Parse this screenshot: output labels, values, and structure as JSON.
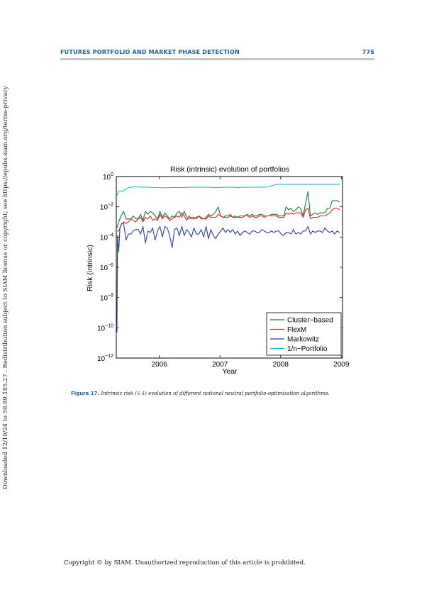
{
  "header": {
    "title": "FUTURES PORTFOLIO AND MARKET PHASE DETECTION",
    "page_number": "775"
  },
  "side_note": "Downloaded 12/10/24 to 50.89.185.27 . Redistribution subject to SIAM license or copyright; see https://epubs.siam.org/terms-privacy",
  "caption": {
    "label": "Figure 17.",
    "text_before": "Intrinsic risk (",
    "ref": "4.4",
    "text_after": ") evolution of different notional neutral portfolio-optimization algorithms."
  },
  "footer": "Copyright © by SIAM. Unauthorized reproduction of this article is prohibited.",
  "colors": {
    "header_blue": "#1f5c99",
    "cluster_based": "#1a7a3a",
    "flexm": "#e8262a",
    "markowitz": "#2b3f9a",
    "one_over_n": "#2bbdc0"
  },
  "chart_data": {
    "type": "line",
    "title": "Risk (intrinsic) evolution of portfolios",
    "xlabel": "Year",
    "ylabel": "Risk (intrinsic)",
    "yscale": "log",
    "xlim": [
      2005.29,
      2009.02
    ],
    "ylim_exponent": [
      -12,
      0
    ],
    "x_ticks": [
      {
        "value": 2006,
        "label": "2006"
      },
      {
        "value": 2007,
        "label": "2007"
      },
      {
        "value": 2008,
        "label": "2008"
      },
      {
        "value": 2009,
        "label": "2009"
      }
    ],
    "y_ticks": [
      {
        "exp": 0,
        "base": "10",
        "sup": "0"
      },
      {
        "exp": -2,
        "base": "10",
        "sup": "−2"
      },
      {
        "exp": -4,
        "base": "10",
        "sup": "−4"
      },
      {
        "exp": -6,
        "base": "10",
        "sup": "−6"
      },
      {
        "exp": -8,
        "base": "10",
        "sup": "−8"
      },
      {
        "exp": -10,
        "base": "10",
        "sup": "−10"
      },
      {
        "exp": -12,
        "base": "10",
        "sup": "−12"
      }
    ],
    "legend_position": "bottom-right",
    "series": [
      {
        "name": "Cluster−based",
        "color": "#1a7a3a",
        "x": [
          2005.3,
          2005.33,
          2005.37,
          2005.41,
          2005.45,
          2005.49,
          2005.53,
          2005.57,
          2005.61,
          2005.65,
          2005.69,
          2005.73,
          2005.77,
          2005.81,
          2005.85,
          2005.89,
          2005.93,
          2005.97,
          2006.01,
          2006.05,
          2006.09,
          2006.13,
          2006.17,
          2006.21,
          2006.25,
          2006.29,
          2006.33,
          2006.37,
          2006.41,
          2006.45,
          2006.49,
          2006.53,
          2006.57,
          2006.61,
          2006.65,
          2006.69,
          2006.73,
          2006.77,
          2006.81,
          2006.85,
          2006.89,
          2006.93,
          2006.97,
          2007.01,
          2007.05,
          2007.09,
          2007.13,
          2007.17,
          2007.21,
          2007.25,
          2007.29,
          2007.33,
          2007.37,
          2007.41,
          2007.45,
          2007.49,
          2007.53,
          2007.57,
          2007.61,
          2007.65,
          2007.69,
          2007.73,
          2007.77,
          2007.81,
          2007.85,
          2007.89,
          2007.93,
          2007.97,
          2008.01,
          2008.05,
          2008.09,
          2008.13,
          2008.17,
          2008.21,
          2008.25,
          2008.29,
          2008.33,
          2008.37,
          2008.41,
          2008.45,
          2008.49,
          2008.53,
          2008.57,
          2008.61,
          2008.65,
          2008.69,
          2008.73,
          2008.77,
          2008.81,
          2008.85,
          2008.89,
          2008.93,
          2008.97
        ],
        "log10": [
          -3.4,
          -3.0,
          -2.6,
          -2.3,
          -2.8,
          -2.8,
          -2.8,
          -2.6,
          -2.8,
          -2.8,
          -2.5,
          -2.9,
          -2.3,
          -2.5,
          -2.3,
          -2.4,
          -2.6,
          -2.8,
          -2.3,
          -2.7,
          -2.4,
          -2.6,
          -2.8,
          -2.6,
          -2.7,
          -2.4,
          -2.3,
          -2.7,
          -2.3,
          -2.7,
          -2.8,
          -2.7,
          -2.7,
          -2.8,
          -2.6,
          -2.8,
          -2.8,
          -2.7,
          -2.5,
          -2.6,
          -2.5,
          -2.3,
          -2.0,
          -2.6,
          -2.7,
          -2.6,
          -2.6,
          -2.5,
          -2.7,
          -2.6,
          -2.7,
          -2.6,
          -2.6,
          -2.6,
          -2.5,
          -2.6,
          -2.5,
          -2.6,
          -2.6,
          -2.5,
          -2.5,
          -2.6,
          -2.6,
          -2.6,
          -2.5,
          -2.5,
          -2.5,
          -2.6,
          -2.6,
          -2.6,
          -2.0,
          -2.2,
          -2.1,
          -2.3,
          -2.2,
          -2.0,
          -2.1,
          -2.6,
          -1.8,
          -1.0,
          -2.6,
          -2.5,
          -2.4,
          -2.5,
          -2.4,
          -2.4,
          -2.4,
          -2.1,
          -2.1,
          -1.6,
          -1.6,
          -1.6,
          -1.7
        ]
      },
      {
        "name": "FlexM",
        "color": "#e8262a",
        "x": [
          2005.3,
          2005.33,
          2005.37,
          2005.41,
          2005.45,
          2005.49,
          2005.53,
          2005.57,
          2005.61,
          2005.65,
          2005.69,
          2005.73,
          2005.77,
          2005.81,
          2005.85,
          2005.89,
          2005.93,
          2005.97,
          2006.01,
          2006.05,
          2006.09,
          2006.13,
          2006.17,
          2006.21,
          2006.25,
          2006.29,
          2006.33,
          2006.37,
          2006.41,
          2006.45,
          2006.49,
          2006.53,
          2006.57,
          2006.61,
          2006.65,
          2006.69,
          2006.73,
          2006.77,
          2006.81,
          2006.85,
          2006.89,
          2006.93,
          2006.97,
          2007.01,
          2007.05,
          2007.09,
          2007.13,
          2007.17,
          2007.21,
          2007.25,
          2007.29,
          2007.33,
          2007.37,
          2007.41,
          2007.45,
          2007.49,
          2007.53,
          2007.57,
          2007.61,
          2007.65,
          2007.69,
          2007.73,
          2007.77,
          2007.81,
          2007.85,
          2007.89,
          2007.93,
          2007.97,
          2008.01,
          2008.05,
          2008.09,
          2008.13,
          2008.17,
          2008.21,
          2008.25,
          2008.29,
          2008.33,
          2008.37,
          2008.41,
          2008.45,
          2008.49,
          2008.53,
          2008.57,
          2008.61,
          2008.65,
          2008.69,
          2008.73,
          2008.77,
          2008.81,
          2008.85,
          2008.89,
          2008.93,
          2008.97
        ],
        "log10": [
          -3.6,
          -3.6,
          -3.2,
          -3.0,
          -3.1,
          -3.0,
          -2.8,
          -2.9,
          -3.0,
          -2.8,
          -2.7,
          -3.0,
          -2.7,
          -2.8,
          -2.6,
          -2.9,
          -2.8,
          -2.9,
          -2.5,
          -2.8,
          -2.6,
          -2.7,
          -2.9,
          -2.8,
          -2.7,
          -2.6,
          -2.7,
          -2.4,
          -2.6,
          -2.9,
          -2.6,
          -2.8,
          -2.8,
          -2.7,
          -2.6,
          -2.7,
          -2.8,
          -2.8,
          -2.6,
          -2.7,
          -2.7,
          -2.7,
          -2.5,
          -2.6,
          -2.7,
          -2.7,
          -2.7,
          -2.6,
          -2.7,
          -2.7,
          -2.7,
          -2.7,
          -2.7,
          -2.6,
          -2.6,
          -2.7,
          -2.6,
          -2.7,
          -2.7,
          -2.6,
          -2.6,
          -2.7,
          -2.6,
          -2.6,
          -2.6,
          -2.6,
          -2.6,
          -2.7,
          -2.7,
          -2.7,
          -2.4,
          -2.5,
          -2.4,
          -2.5,
          -2.4,
          -2.4,
          -2.4,
          -2.7,
          -2.2,
          -2.1,
          -2.8,
          -2.7,
          -2.7,
          -2.7,
          -2.6,
          -2.6,
          -2.6,
          -2.5,
          -2.4,
          -2.2,
          -2.1,
          -2.1,
          -2.2
        ]
      },
      {
        "name": "Markowitz",
        "color": "#2b3f9a",
        "x": [
          2005.3,
          2005.31,
          2005.33,
          2005.35,
          2005.38,
          2005.41,
          2005.45,
          2005.49,
          2005.53,
          2005.57,
          2005.61,
          2005.65,
          2005.69,
          2005.73,
          2005.77,
          2005.81,
          2005.85,
          2005.89,
          2005.93,
          2005.97,
          2006.01,
          2006.05,
          2006.09,
          2006.13,
          2006.17,
          2006.21,
          2006.25,
          2006.29,
          2006.33,
          2006.37,
          2006.41,
          2006.45,
          2006.49,
          2006.53,
          2006.57,
          2006.61,
          2006.65,
          2006.69,
          2006.73,
          2006.77,
          2006.81,
          2006.85,
          2006.89,
          2006.93,
          2006.97,
          2007.01,
          2007.05,
          2007.09,
          2007.13,
          2007.17,
          2007.21,
          2007.25,
          2007.29,
          2007.33,
          2007.37,
          2007.41,
          2007.45,
          2007.49,
          2007.53,
          2007.57,
          2007.61,
          2007.65,
          2007.69,
          2007.73,
          2007.77,
          2007.81,
          2007.85,
          2007.89,
          2007.93,
          2007.97,
          2008.01,
          2008.05,
          2008.09,
          2008.13,
          2008.17,
          2008.21,
          2008.25,
          2008.29,
          2008.33,
          2008.37,
          2008.41,
          2008.45,
          2008.49,
          2008.53,
          2008.57,
          2008.61,
          2008.65,
          2008.69,
          2008.73,
          2008.77,
          2008.81,
          2008.85,
          2008.89,
          2008.93,
          2008.97
        ],
        "log10": [
          -10.3,
          -3.9,
          -5.0,
          -3.4,
          -3.1,
          -3.1,
          -4.2,
          -3.8,
          -3.8,
          -3.6,
          -3.5,
          -3.5,
          -3.8,
          -3.3,
          -4.4,
          -3.6,
          -3.7,
          -3.4,
          -4.2,
          -3.6,
          -3.3,
          -4.0,
          -3.3,
          -3.4,
          -3.9,
          -4.7,
          -3.5,
          -3.4,
          -3.9,
          -3.3,
          -3.9,
          -3.5,
          -3.7,
          -4.0,
          -3.4,
          -3.8,
          -3.8,
          -3.5,
          -4.0,
          -3.3,
          -4.1,
          -3.5,
          -3.9,
          -4.1,
          -3.8,
          -3.6,
          -3.4,
          -3.7,
          -3.5,
          -3.7,
          -3.5,
          -3.8,
          -3.6,
          -3.9,
          -3.7,
          -3.6,
          -3.7,
          -3.8,
          -3.6,
          -3.6,
          -3.7,
          -3.7,
          -3.5,
          -3.6,
          -3.7,
          -3.7,
          -3.6,
          -3.7,
          -3.6,
          -3.6,
          -3.8,
          -3.9,
          -3.7,
          -3.7,
          -3.8,
          -3.5,
          -3.8,
          -3.7,
          -3.8,
          -3.6,
          -3.6,
          -3.3,
          -3.8,
          -3.6,
          -3.7,
          -3.6,
          -3.6,
          -3.7,
          -3.4,
          -3.6,
          -3.7,
          -3.6,
          -3.8,
          -3.6,
          -3.7
        ]
      },
      {
        "name": "1/n−Portfolio",
        "color": "#2bbdc0",
        "x": [
          2005.3,
          2005.33,
          2005.36,
          2005.4,
          2005.45,
          2005.5,
          2005.55,
          2005.6,
          2005.7,
          2005.8,
          2005.9,
          2006.0,
          2006.1,
          2006.2,
          2006.3,
          2006.4,
          2006.5,
          2006.6,
          2006.7,
          2006.8,
          2006.9,
          2007.0,
          2007.1,
          2007.2,
          2007.3,
          2007.4,
          2007.5,
          2007.6,
          2007.7,
          2007.75,
          2007.8,
          2007.85,
          2007.9,
          2007.95,
          2008.0,
          2008.1,
          2008.2,
          2008.3,
          2008.4,
          2008.5,
          2008.6,
          2008.7,
          2008.8,
          2008.9,
          2008.97
        ],
        "log10": [
          -1.25,
          -0.95,
          -0.95,
          -0.98,
          -0.8,
          -0.72,
          -0.7,
          -0.68,
          -0.7,
          -0.7,
          -0.72,
          -0.73,
          -0.74,
          -0.73,
          -0.72,
          -0.72,
          -0.71,
          -0.71,
          -0.71,
          -0.71,
          -0.72,
          -0.72,
          -0.71,
          -0.71,
          -0.72,
          -0.71,
          -0.71,
          -0.7,
          -0.7,
          -0.71,
          -0.68,
          -0.62,
          -0.55,
          -0.52,
          -0.52,
          -0.52,
          -0.51,
          -0.52,
          -0.52,
          -0.51,
          -0.52,
          -0.52,
          -0.52,
          -0.52,
          -0.52
        ]
      }
    ]
  }
}
